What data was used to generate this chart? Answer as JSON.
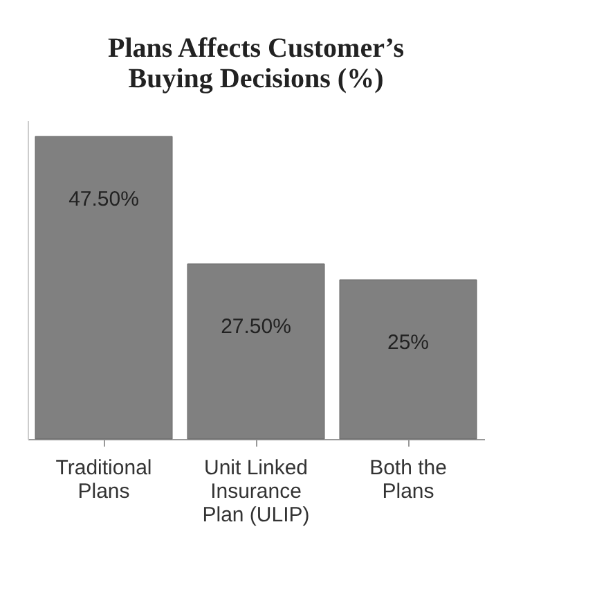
{
  "chart_data": {
    "type": "bar",
    "title": "Plans Affects Customer’s Buying Decisions (%)",
    "categories": [
      "Traditional Plans",
      "Unit Linked Insurance Plan (ULIP)",
      "Both the Plans"
    ],
    "values": [
      47.5,
      27.5,
      25
    ],
    "value_labels": [
      "47.50%",
      "27.50%",
      "25%"
    ],
    "color": "#808080",
    "grid": false
  }
}
